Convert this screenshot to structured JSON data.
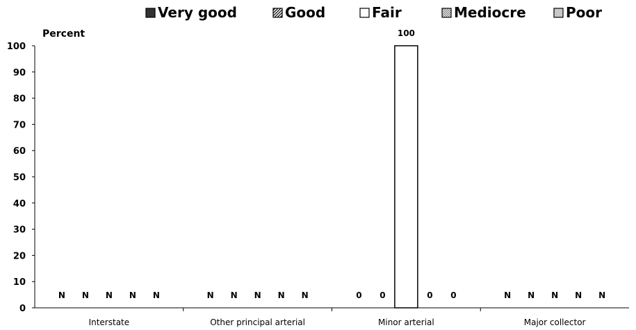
{
  "chart_data": {
    "type": "bar",
    "ylabel": "Percent",
    "ylim": [
      0,
      100
    ],
    "yticks": [
      0,
      10,
      20,
      30,
      40,
      50,
      60,
      70,
      80,
      90,
      100
    ],
    "grid": false,
    "legend_position": "top",
    "categories": [
      "Interstate",
      "Other principal arterial",
      "Minor arterial",
      "Major collector"
    ],
    "series": [
      {
        "name": "Very good",
        "pattern": "solid-dark",
        "color": "#333333",
        "values": [
          null,
          null,
          0,
          null
        ],
        "labels": [
          "N",
          "N",
          "0",
          "N"
        ]
      },
      {
        "name": "Good",
        "pattern": "diagonal-hatch",
        "color": "#000000",
        "values": [
          null,
          null,
          0,
          null
        ],
        "labels": [
          "N",
          "N",
          "0",
          "N"
        ]
      },
      {
        "name": "Fair",
        "pattern": "white",
        "color": "#ffffff",
        "values": [
          null,
          null,
          100,
          null
        ],
        "labels": [
          "N",
          "N",
          "100",
          "N"
        ]
      },
      {
        "name": "Mediocre",
        "pattern": "fine-hatch",
        "color": "#555555",
        "values": [
          null,
          null,
          0,
          null
        ],
        "labels": [
          "N",
          "N",
          "0",
          "N"
        ]
      },
      {
        "name": "Poor",
        "pattern": "light-gray",
        "color": "#c8c8c8",
        "values": [
          null,
          null,
          0,
          null
        ],
        "labels": [
          "N",
          "N",
          "0",
          "N"
        ]
      }
    ]
  }
}
